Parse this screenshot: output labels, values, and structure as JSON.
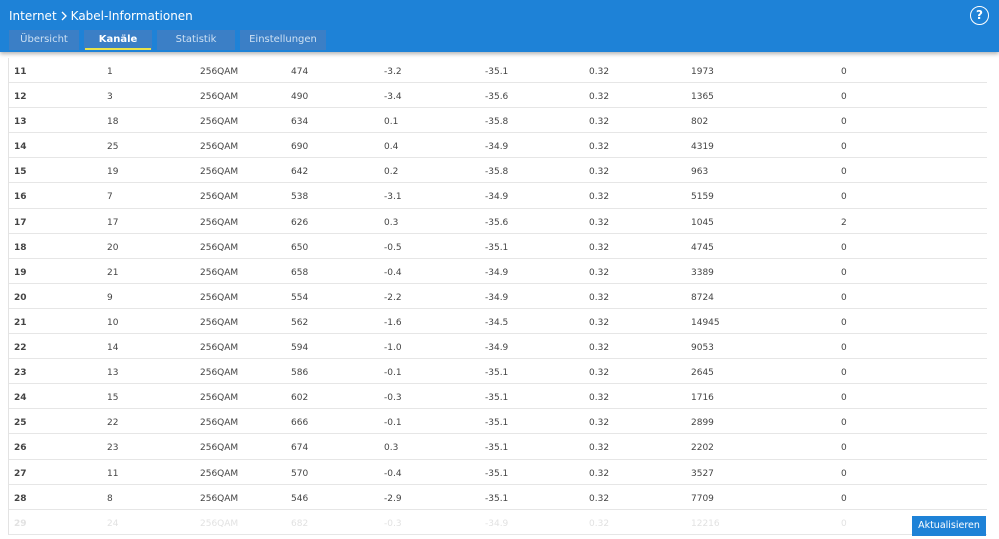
{
  "header": {
    "breadcrumb": [
      "Internet",
      "Kabel-Informationen"
    ],
    "help": "?"
  },
  "tabs": [
    {
      "label": "Übersicht",
      "active": false
    },
    {
      "label": "Kanäle",
      "active": true
    },
    {
      "label": "Statistik",
      "active": false
    },
    {
      "label": "Einstellungen",
      "active": false
    }
  ],
  "table": {
    "rows": [
      [
        "11",
        "1",
        "256QAM",
        "474",
        "-3.2",
        "-35.1",
        "0.32",
        "1973",
        "0"
      ],
      [
        "12",
        "3",
        "256QAM",
        "490",
        "-3.4",
        "-35.6",
        "0.32",
        "1365",
        "0"
      ],
      [
        "13",
        "18",
        "256QAM",
        "634",
        "0.1",
        "-35.8",
        "0.32",
        "802",
        "0"
      ],
      [
        "14",
        "25",
        "256QAM",
        "690",
        "0.4",
        "-34.9",
        "0.32",
        "4319",
        "0"
      ],
      [
        "15",
        "19",
        "256QAM",
        "642",
        "0.2",
        "-35.8",
        "0.32",
        "963",
        "0"
      ],
      [
        "16",
        "7",
        "256QAM",
        "538",
        "-3.1",
        "-34.9",
        "0.32",
        "5159",
        "0"
      ],
      [
        "17",
        "17",
        "256QAM",
        "626",
        "0.3",
        "-35.6",
        "0.32",
        "1045",
        "2"
      ],
      [
        "18",
        "20",
        "256QAM",
        "650",
        "-0.5",
        "-35.1",
        "0.32",
        "4745",
        "0"
      ],
      [
        "19",
        "21",
        "256QAM",
        "658",
        "-0.4",
        "-34.9",
        "0.32",
        "3389",
        "0"
      ],
      [
        "20",
        "9",
        "256QAM",
        "554",
        "-2.2",
        "-34.9",
        "0.32",
        "8724",
        "0"
      ],
      [
        "21",
        "10",
        "256QAM",
        "562",
        "-1.6",
        "-34.5",
        "0.32",
        "14945",
        "0"
      ],
      [
        "22",
        "14",
        "256QAM",
        "594",
        "-1.0",
        "-34.9",
        "0.32",
        "9053",
        "0"
      ],
      [
        "23",
        "13",
        "256QAM",
        "586",
        "-0.1",
        "-35.1",
        "0.32",
        "2645",
        "0"
      ],
      [
        "24",
        "15",
        "256QAM",
        "602",
        "-0.3",
        "-35.1",
        "0.32",
        "1716",
        "0"
      ],
      [
        "25",
        "22",
        "256QAM",
        "666",
        "-0.1",
        "-35.1",
        "0.32",
        "2899",
        "0"
      ],
      [
        "26",
        "23",
        "256QAM",
        "674",
        "0.3",
        "-35.1",
        "0.32",
        "2202",
        "0"
      ],
      [
        "27",
        "11",
        "256QAM",
        "570",
        "-0.4",
        "-35.1",
        "0.32",
        "3527",
        "0"
      ],
      [
        "28",
        "8",
        "256QAM",
        "546",
        "-2.9",
        "-35.1",
        "0.32",
        "7709",
        "0"
      ],
      [
        "29",
        "24",
        "256QAM",
        "682",
        "-0.3",
        "-34.9",
        "0.32",
        "12216",
        "0"
      ]
    ]
  },
  "footer": {
    "button": "Aktualisieren"
  }
}
